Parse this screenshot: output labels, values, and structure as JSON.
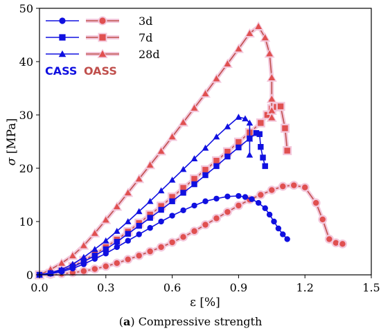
{
  "chart_data": {
    "type": "line",
    "caption_prefix": "(",
    "caption_letter": "a",
    "caption_suffix": ") Compressive strength",
    "xlabel": "ε [%]",
    "ylabel_symbol": "σ",
    "ylabel_unit": " [MPa]",
    "xlim": [
      0.0,
      1.5
    ],
    "ylim": [
      0,
      50
    ],
    "x_ticks": [
      "0.0",
      "0.3",
      "0.6",
      "0.9",
      "1.2",
      "1.5"
    ],
    "y_ticks": [
      "0",
      "10",
      "20",
      "30",
      "40",
      "50"
    ],
    "grid": false,
    "legend": {
      "placement": "top-left",
      "entries": [
        "3d",
        "7d",
        "28d"
      ],
      "group_labels": [
        "CASS",
        "OASS"
      ]
    },
    "colors": {
      "CASS": "#1010e0",
      "OASS": "#c0504d",
      "OASS_marker": "#e05050",
      "OASS_halo": "#f3c8dc"
    },
    "series": [
      {
        "group": "CASS",
        "age": "3d",
        "marker": "circle",
        "x": [
          0.0,
          0.05,
          0.1,
          0.15,
          0.2,
          0.25,
          0.3,
          0.35,
          0.4,
          0.45,
          0.5,
          0.55,
          0.6,
          0.65,
          0.7,
          0.75,
          0.8,
          0.85,
          0.9,
          0.93,
          0.96,
          0.99,
          1.02,
          1.04,
          1.06,
          1.08,
          1.1,
          1.12
        ],
        "y": [
          0.0,
          0.2,
          0.6,
          1.2,
          2.0,
          3.0,
          4.0,
          5.2,
          6.4,
          7.6,
          8.8,
          10.0,
          11.1,
          12.1,
          13.0,
          13.8,
          14.3,
          14.7,
          14.8,
          14.6,
          14.2,
          13.5,
          12.5,
          11.3,
          10.0,
          8.7,
          7.6,
          6.7
        ]
      },
      {
        "group": "CASS",
        "age": "7d",
        "marker": "square",
        "x": [
          0.0,
          0.05,
          0.1,
          0.15,
          0.2,
          0.25,
          0.3,
          0.35,
          0.4,
          0.45,
          0.5,
          0.55,
          0.6,
          0.65,
          0.7,
          0.75,
          0.8,
          0.85,
          0.9,
          0.95,
          0.98,
          0.995,
          1.0,
          1.01,
          1.02
        ],
        "y": [
          0.0,
          0.3,
          0.8,
          1.5,
          2.5,
          3.6,
          4.8,
          6.2,
          7.7,
          9.2,
          10.7,
          12.2,
          13.8,
          15.4,
          17.0,
          18.7,
          20.4,
          22.2,
          23.9,
          25.6,
          26.6,
          26.4,
          24.0,
          22.0,
          20.4
        ]
      },
      {
        "group": "CASS",
        "age": "28d",
        "marker": "triangle",
        "x": [
          0.0,
          0.05,
          0.1,
          0.15,
          0.2,
          0.25,
          0.3,
          0.35,
          0.4,
          0.45,
          0.5,
          0.55,
          0.6,
          0.65,
          0.7,
          0.75,
          0.8,
          0.85,
          0.9,
          0.93,
          0.95,
          0.95,
          0.95
        ],
        "y": [
          0.0,
          0.4,
          1.0,
          2.0,
          3.3,
          4.8,
          6.4,
          8.2,
          10.0,
          11.9,
          13.8,
          15.8,
          17.8,
          19.8,
          21.8,
          23.8,
          25.9,
          27.8,
          29.6,
          29.3,
          28.5,
          25.5,
          22.5
        ]
      },
      {
        "group": "OASS",
        "age": "3d",
        "marker": "circle",
        "x": [
          0.0,
          0.05,
          0.1,
          0.15,
          0.2,
          0.25,
          0.3,
          0.35,
          0.4,
          0.45,
          0.5,
          0.55,
          0.6,
          0.65,
          0.7,
          0.75,
          0.8,
          0.85,
          0.9,
          0.95,
          1.0,
          1.05,
          1.1,
          1.15,
          1.2,
          1.25,
          1.28,
          1.31,
          1.34,
          1.37
        ],
        "y": [
          0.0,
          0.1,
          0.2,
          0.4,
          0.7,
          1.1,
          1.6,
          2.2,
          2.9,
          3.6,
          4.4,
          5.2,
          6.1,
          7.1,
          8.2,
          9.4,
          10.6,
          11.8,
          13.0,
          14.1,
          15.0,
          15.9,
          16.6,
          16.8,
          16.4,
          13.5,
          10.4,
          6.7,
          6.0,
          5.8
        ]
      },
      {
        "group": "OASS",
        "age": "7d",
        "marker": "square",
        "x": [
          0.0,
          0.05,
          0.1,
          0.15,
          0.2,
          0.25,
          0.3,
          0.35,
          0.4,
          0.45,
          0.5,
          0.55,
          0.6,
          0.65,
          0.7,
          0.75,
          0.8,
          0.85,
          0.9,
          0.95,
          1.0,
          1.03,
          1.05,
          1.07,
          1.09,
          1.11,
          1.12
        ],
        "y": [
          0.0,
          0.3,
          0.8,
          1.6,
          2.7,
          3.9,
          5.2,
          6.6,
          8.1,
          9.7,
          11.3,
          12.9,
          14.6,
          16.3,
          18.0,
          19.7,
          21.4,
          23.1,
          24.9,
          26.7,
          28.5,
          30.0,
          31.2,
          31.5,
          31.6,
          27.5,
          23.3
        ]
      },
      {
        "group": "OASS",
        "age": "28d",
        "marker": "triangle",
        "x": [
          0.0,
          0.05,
          0.1,
          0.15,
          0.2,
          0.25,
          0.3,
          0.35,
          0.4,
          0.45,
          0.5,
          0.55,
          0.6,
          0.65,
          0.7,
          0.75,
          0.8,
          0.85,
          0.9,
          0.95,
          0.99,
          1.02,
          1.04,
          1.05,
          1.05,
          1.05,
          1.05
        ],
        "y": [
          0.0,
          1.0,
          2.2,
          3.6,
          5.5,
          7.8,
          10.3,
          12.8,
          15.4,
          18.0,
          20.6,
          23.2,
          25.9,
          28.6,
          31.3,
          34.0,
          36.8,
          39.6,
          42.4,
          45.3,
          46.6,
          44.5,
          41.5,
          37.0,
          33.0,
          30.8,
          29.5
        ]
      }
    ]
  }
}
